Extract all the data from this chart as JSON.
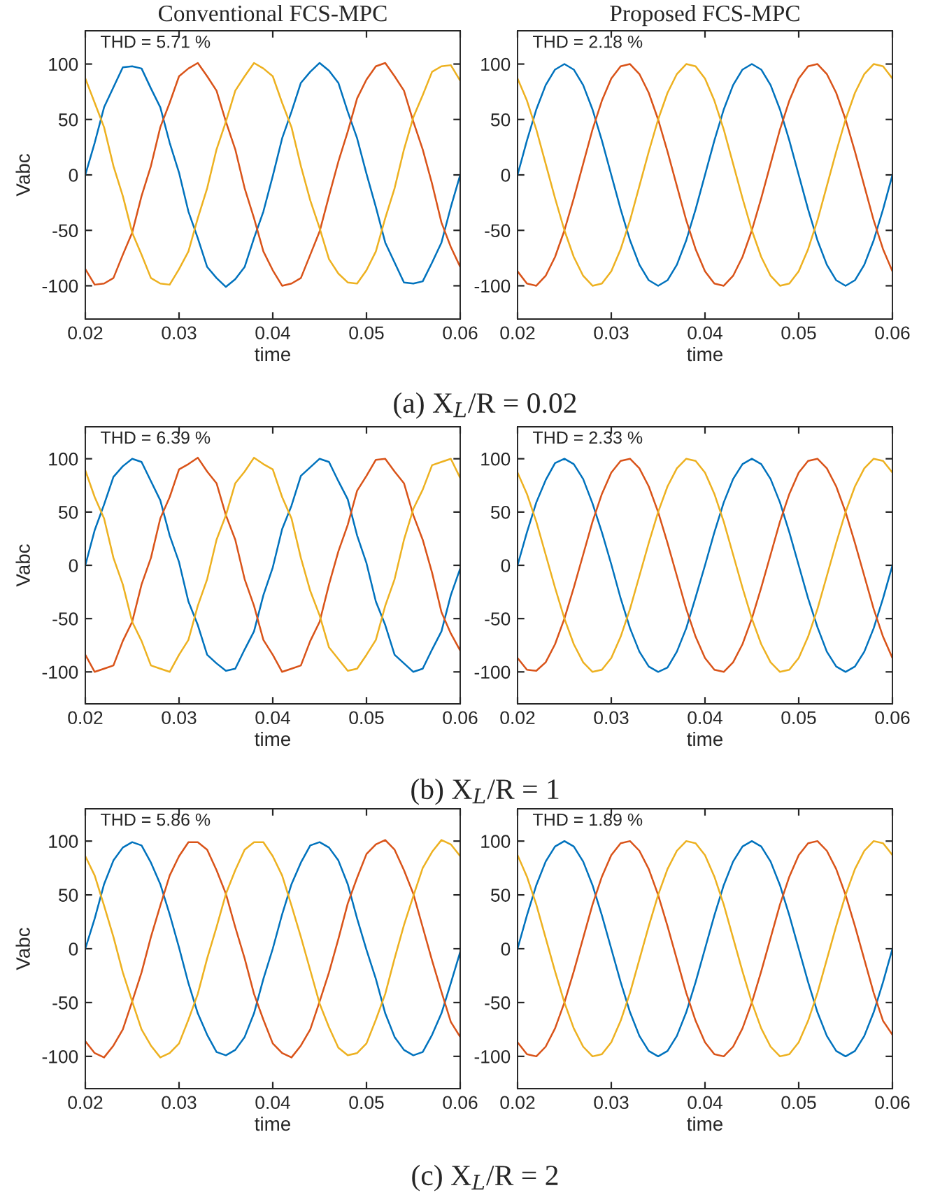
{
  "chart_data": [
    {
      "type": "line",
      "title": "Conventional FCS-MPC",
      "xlabel": "time",
      "ylabel": "Vabc",
      "annotations": [
        "THD = 5.71 %",
        "(a) X$_{L}$/R = 0.02"
      ],
      "x": [
        0.02,
        0.021,
        0.022,
        0.023,
        0.024,
        0.025,
        0.026,
        0.027,
        0.028,
        0.029,
        0.03,
        0.031,
        0.032,
        0.033,
        0.034,
        0.035,
        0.036,
        0.037,
        0.038,
        0.039,
        0.04,
        0.041,
        0.042,
        0.043,
        0.044,
        0.045,
        0.046,
        0.047,
        0.048,
        0.049,
        0.05,
        0.051,
        0.052,
        0.053,
        0.054,
        0.055,
        0.056,
        0.057,
        0.058,
        0.059,
        0.06
      ],
      "xlim": [
        0.02,
        0.06
      ],
      "xticks": [
        0.02,
        0.03,
        0.04,
        0.05,
        0.06
      ],
      "ylim": [
        -130,
        130
      ],
      "yticks": [
        -100,
        -50,
        0,
        50,
        100
      ],
      "legend": false,
      "grid": false,
      "series": [
        {
          "color": "#0072bd",
          "values": [
            0,
            29,
            61,
            79,
            97,
            98,
            96,
            78,
            61,
            29,
            2,
            -33,
            -57,
            -83,
            -93,
            -101,
            -94,
            -83,
            -57,
            -33,
            -1,
            33,
            57,
            83,
            93,
            101,
            94,
            83,
            57,
            33,
            1,
            -29,
            -61,
            -79,
            -97,
            -98,
            -96,
            -79,
            -61,
            -29,
            0
          ]
        },
        {
          "color": "#d95319",
          "values": [
            -85,
            -99,
            -98,
            -93,
            -72,
            -52,
            -19,
            8,
            43,
            65,
            89,
            96,
            101,
            89,
            76,
            48,
            23,
            -12,
            -39,
            -69,
            -86,
            -100,
            -98,
            -93,
            -72,
            -51,
            -19,
            12,
            39,
            69,
            86,
            98,
            101,
            89,
            76,
            48,
            23,
            -8,
            -43,
            -65,
            -83
          ]
        },
        {
          "color": "#edb120",
          "values": [
            87,
            65,
            43,
            8,
            -19,
            -52,
            -72,
            -93,
            -98,
            -99,
            -85,
            -69,
            -39,
            -12,
            23,
            48,
            76,
            89,
            101,
            96,
            89,
            65,
            43,
            8,
            -23,
            -48,
            -76,
            -89,
            -97,
            -98,
            -86,
            -69,
            -39,
            -12,
            23,
            52,
            72,
            93,
            98,
            99,
            85
          ]
        }
      ]
    },
    {
      "type": "line",
      "title": "Proposed FCS-MPC",
      "xlabel": "time",
      "annotations": [
        "THD = 2.18 %"
      ],
      "x": [
        0.02,
        0.021,
        0.022,
        0.023,
        0.024,
        0.025,
        0.026,
        0.027,
        0.028,
        0.029,
        0.03,
        0.031,
        0.032,
        0.033,
        0.034,
        0.035,
        0.036,
        0.037,
        0.038,
        0.039,
        0.04,
        0.041,
        0.042,
        0.043,
        0.044,
        0.045,
        0.046,
        0.047,
        0.048,
        0.049,
        0.05,
        0.051,
        0.052,
        0.053,
        0.054,
        0.055,
        0.056,
        0.057,
        0.058,
        0.059,
        0.06
      ],
      "xlim": [
        0.02,
        0.06
      ],
      "xticks": [
        0.02,
        0.03,
        0.04,
        0.05,
        0.06
      ],
      "ylim": [
        -130,
        130
      ],
      "yticks": [
        -100,
        -50,
        0,
        50,
        100
      ],
      "legend": false,
      "grid": false,
      "series": [
        {
          "color": "#0072bd",
          "values": [
            0,
            31,
            59,
            81,
            95,
            100,
            95,
            81,
            59,
            31,
            0,
            -31,
            -59,
            -81,
            -95,
            -100,
            -95,
            -81,
            -59,
            -31,
            0,
            31,
            59,
            81,
            95,
            100,
            95,
            81,
            59,
            31,
            0,
            -31,
            -59,
            -81,
            -95,
            -100,
            -95,
            -81,
            -59,
            -31,
            0
          ]
        },
        {
          "color": "#d95319",
          "values": [
            -87,
            -98,
            -100,
            -91,
            -74,
            -50,
            -21,
            10,
            41,
            67,
            87,
            98,
            100,
            91,
            74,
            50,
            21,
            -10,
            -41,
            -67,
            -87,
            -98,
            -100,
            -91,
            -74,
            -50,
            -21,
            10,
            41,
            67,
            87,
            98,
            100,
            91,
            74,
            50,
            21,
            -10,
            -41,
            -67,
            -87
          ]
        },
        {
          "color": "#edb120",
          "values": [
            87,
            67,
            41,
            10,
            -21,
            -50,
            -74,
            -91,
            -100,
            -98,
            -87,
            -67,
            -41,
            -10,
            21,
            50,
            74,
            91,
            100,
            98,
            87,
            67,
            41,
            10,
            -21,
            -50,
            -74,
            -91,
            -100,
            -98,
            -87,
            -67,
            -41,
            -10,
            21,
            50,
            74,
            91,
            100,
            98,
            87
          ]
        }
      ]
    },
    {
      "type": "line",
      "xlabel": "time",
      "ylabel": "Vabc",
      "annotations": [
        "THD = 6.39 %",
        "(b) X$_{L}$/R = 1"
      ],
      "x": [
        0.02,
        0.021,
        0.022,
        0.023,
        0.024,
        0.025,
        0.026,
        0.027,
        0.028,
        0.029,
        0.03,
        0.031,
        0.032,
        0.033,
        0.034,
        0.035,
        0.036,
        0.037,
        0.038,
        0.039,
        0.04,
        0.041,
        0.042,
        0.043,
        0.044,
        0.045,
        0.046,
        0.047,
        0.048,
        0.049,
        0.05,
        0.051,
        0.052,
        0.053,
        0.054,
        0.055,
        0.056,
        0.057,
        0.058,
        0.059,
        0.06
      ],
      "xlim": [
        0.02,
        0.06
      ],
      "xticks": [
        0.02,
        0.03,
        0.04,
        0.05,
        0.06
      ],
      "ylim": [
        -130,
        130
      ],
      "yticks": [
        -100,
        -50,
        0,
        50,
        100
      ],
      "legend": false,
      "grid": false,
      "series": [
        {
          "color": "#0072bd",
          "values": [
            0,
            33,
            57,
            83,
            93,
            100,
            97,
            79,
            61,
            28,
            3,
            -34,
            -56,
            -84,
            -92,
            -99,
            -97,
            -79,
            -62,
            -28,
            -2,
            34,
            56,
            84,
            92,
            100,
            97,
            79,
            62,
            28,
            2,
            -34,
            -56,
            -84,
            -92,
            -100,
            -97,
            -79,
            -62,
            -28,
            -3
          ]
        },
        {
          "color": "#d95319",
          "values": [
            -84,
            -100,
            -97,
            -94,
            -71,
            -53,
            -18,
            7,
            44,
            64,
            90,
            95,
            101,
            88,
            77,
            47,
            24,
            -13,
            -38,
            -70,
            -84,
            -100,
            -97,
            -94,
            -71,
            -53,
            -18,
            13,
            38,
            70,
            84,
            99,
            100,
            88,
            77,
            47,
            24,
            -7,
            -44,
            -64,
            -80
          ]
        },
        {
          "color": "#edb120",
          "values": [
            89,
            64,
            44,
            7,
            -18,
            -53,
            -71,
            -94,
            -97,
            -100,
            -84,
            -70,
            -38,
            -13,
            24,
            47,
            77,
            88,
            101,
            95,
            90,
            64,
            44,
            7,
            -24,
            -47,
            -77,
            -88,
            -99,
            -97,
            -84,
            -70,
            -38,
            -13,
            24,
            53,
            71,
            94,
            97,
            100,
            82
          ]
        }
      ]
    },
    {
      "type": "line",
      "xlabel": "time",
      "annotations": [
        "THD = 2.33 %"
      ],
      "x": [
        0.02,
        0.021,
        0.022,
        0.023,
        0.024,
        0.025,
        0.026,
        0.027,
        0.028,
        0.029,
        0.03,
        0.031,
        0.032,
        0.033,
        0.034,
        0.035,
        0.036,
        0.037,
        0.038,
        0.039,
        0.04,
        0.041,
        0.042,
        0.043,
        0.044,
        0.045,
        0.046,
        0.047,
        0.048,
        0.049,
        0.05,
        0.051,
        0.052,
        0.053,
        0.054,
        0.055,
        0.056,
        0.057,
        0.058,
        0.059,
        0.06
      ],
      "xlim": [
        0.02,
        0.06
      ],
      "xticks": [
        0.02,
        0.03,
        0.04,
        0.05,
        0.06
      ],
      "ylim": [
        -130,
        130
      ],
      "yticks": [
        -100,
        -50,
        0,
        50,
        100
      ],
      "legend": false,
      "grid": false,
      "series": [
        {
          "color": "#0072bd",
          "values": [
            0,
            31,
            59,
            80,
            96,
            100,
            95,
            81,
            58,
            31,
            1,
            -31,
            -59,
            -81,
            -95,
            -100,
            -96,
            -81,
            -59,
            -30,
            0,
            31,
            59,
            81,
            95,
            100,
            95,
            81,
            59,
            31,
            0,
            -31,
            -58,
            -81,
            -95,
            -100,
            -95,
            -81,
            -59,
            -31,
            0
          ]
        },
        {
          "color": "#d95319",
          "values": [
            -87,
            -98,
            -99,
            -91,
            -74,
            -50,
            -21,
            10,
            41,
            67,
            87,
            98,
            100,
            91,
            74,
            50,
            21,
            -10,
            -41,
            -67,
            -87,
            -98,
            -100,
            -91,
            -74,
            -50,
            -21,
            10,
            41,
            67,
            87,
            98,
            100,
            91,
            74,
            50,
            21,
            -10,
            -41,
            -67,
            -87
          ]
        },
        {
          "color": "#edb120",
          "values": [
            87,
            67,
            41,
            10,
            -21,
            -50,
            -74,
            -91,
            -100,
            -98,
            -87,
            -67,
            -41,
            -10,
            21,
            50,
            74,
            91,
            100,
            98,
            87,
            67,
            41,
            10,
            -21,
            -50,
            -74,
            -91,
            -100,
            -98,
            -87,
            -67,
            -41,
            -10,
            21,
            50,
            74,
            91,
            100,
            98,
            87
          ]
        }
      ]
    },
    {
      "type": "line",
      "xlabel": "time",
      "ylabel": "Vabc",
      "annotations": [
        "THD = 5.86 %",
        "(c) X$_{L}$/R = 2"
      ],
      "x": [
        0.02,
        0.021,
        0.022,
        0.023,
        0.024,
        0.025,
        0.026,
        0.027,
        0.028,
        0.029,
        0.03,
        0.031,
        0.032,
        0.033,
        0.034,
        0.035,
        0.036,
        0.037,
        0.038,
        0.039,
        0.04,
        0.041,
        0.042,
        0.043,
        0.044,
        0.045,
        0.046,
        0.047,
        0.048,
        0.049,
        0.05,
        0.051,
        0.052,
        0.053,
        0.054,
        0.055,
        0.056,
        0.057,
        0.058,
        0.059,
        0.06
      ],
      "xlim": [
        0.02,
        0.06
      ],
      "xticks": [
        0.02,
        0.03,
        0.04,
        0.05,
        0.06
      ],
      "ylim": [
        -130,
        130
      ],
      "yticks": [
        -100,
        -50,
        0,
        50,
        100
      ],
      "legend": false,
      "grid": false,
      "series": [
        {
          "color": "#0072bd",
          "values": [
            0,
            28,
            60,
            82,
            94,
            99,
            96,
            80,
            60,
            32,
            1,
            -32,
            -60,
            -80,
            -96,
            -99,
            -94,
            -82,
            -60,
            -28,
            0,
            32,
            60,
            80,
            96,
            99,
            94,
            82,
            60,
            28,
            -1,
            -28,
            -60,
            -82,
            -94,
            -99,
            -96,
            -80,
            -60,
            -32,
            -3
          ]
        },
        {
          "color": "#d95319",
          "values": [
            -86,
            -97,
            -101,
            -90,
            -75,
            -49,
            -22,
            11,
            40,
            68,
            86,
            99,
            99,
            92,
            73,
            51,
            20,
            -9,
            -42,
            -66,
            -88,
            -97,
            -101,
            -90,
            -75,
            -49,
            -22,
            9,
            42,
            66,
            88,
            97,
            101,
            92,
            73,
            51,
            20,
            -11,
            -40,
            -68,
            -82
          ]
        },
        {
          "color": "#edb120",
          "values": [
            86,
            68,
            40,
            11,
            -22,
            -49,
            -75,
            -90,
            -101,
            -97,
            -88,
            -66,
            -42,
            -9,
            20,
            51,
            73,
            92,
            99,
            99,
            86,
            68,
            40,
            11,
            -20,
            -51,
            -73,
            -92,
            -99,
            -97,
            -88,
            -66,
            -42,
            -9,
            22,
            49,
            75,
            90,
            101,
            97,
            86
          ]
        }
      ]
    },
    {
      "type": "line",
      "xlabel": "time",
      "annotations": [
        "THD = 1.89 %"
      ],
      "x": [
        0.02,
        0.021,
        0.022,
        0.023,
        0.024,
        0.025,
        0.026,
        0.027,
        0.028,
        0.029,
        0.03,
        0.031,
        0.032,
        0.033,
        0.034,
        0.035,
        0.036,
        0.037,
        0.038,
        0.039,
        0.04,
        0.041,
        0.042,
        0.043,
        0.044,
        0.045,
        0.046,
        0.047,
        0.048,
        0.049,
        0.05,
        0.051,
        0.052,
        0.053,
        0.054,
        0.055,
        0.056,
        0.057,
        0.058,
        0.059,
        0.06
      ],
      "xlim": [
        0.02,
        0.06
      ],
      "xticks": [
        0.02,
        0.03,
        0.04,
        0.05,
        0.06
      ],
      "ylim": [
        -130,
        130
      ],
      "yticks": [
        -100,
        -50,
        0,
        50,
        100
      ],
      "legend": false,
      "grid": false,
      "series": [
        {
          "color": "#0072bd",
          "values": [
            0,
            31,
            59,
            81,
            95,
            100,
            95,
            81,
            59,
            31,
            0,
            -31,
            -59,
            -81,
            -95,
            -100,
            -95,
            -81,
            -59,
            -31,
            0,
            31,
            59,
            81,
            95,
            100,
            95,
            81,
            59,
            31,
            0,
            -31,
            -59,
            -81,
            -95,
            -100,
            -95,
            -81,
            -59,
            -31,
            0
          ]
        },
        {
          "color": "#d95319",
          "values": [
            -87,
            -98,
            -100,
            -91,
            -74,
            -50,
            -21,
            10,
            41,
            67,
            87,
            98,
            100,
            91,
            74,
            50,
            21,
            -10,
            -41,
            -67,
            -87,
            -98,
            -100,
            -91,
            -74,
            -50,
            -21,
            10,
            41,
            67,
            87,
            98,
            100,
            91,
            74,
            50,
            21,
            -10,
            -41,
            -67,
            -80
          ]
        },
        {
          "color": "#edb120",
          "values": [
            87,
            67,
            41,
            10,
            -21,
            -50,
            -74,
            -91,
            -100,
            -98,
            -87,
            -67,
            -41,
            -10,
            21,
            50,
            74,
            91,
            100,
            98,
            87,
            67,
            41,
            10,
            -21,
            -50,
            -74,
            -91,
            -100,
            -98,
            -87,
            -67,
            -41,
            -10,
            21,
            50,
            74,
            91,
            100,
            98,
            87
          ]
        }
      ]
    }
  ]
}
